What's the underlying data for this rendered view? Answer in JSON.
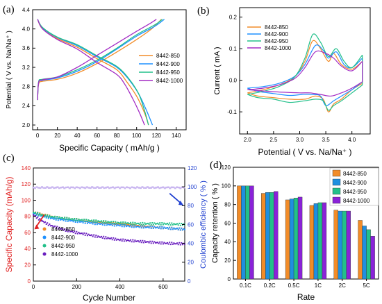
{
  "panels": {
    "a": {
      "letter": "(a)"
    },
    "b": {
      "letter": "(b)"
    },
    "c": {
      "letter": "(c)"
    },
    "d": {
      "letter": "(d)"
    }
  },
  "chart_data": [
    {
      "id": "a",
      "type": "line",
      "xlabel": "Specific Capacity ( mAh/g )",
      "ylabel": "Potential ( V vs. Na/Na⁺ )",
      "xlim": [
        -5,
        150
      ],
      "ylim": [
        1.9,
        4.4
      ],
      "xticks": [
        0,
        20,
        40,
        60,
        80,
        100,
        120,
        140
      ],
      "yticks": [
        2.0,
        2.4,
        2.8,
        3.2,
        3.6,
        4.0,
        4.4
      ],
      "ytick_labels": [
        "2.0",
        "2.4",
        "2.8",
        "3.2",
        "3.6",
        "4.0",
        "4.4"
      ],
      "legend_position": "right",
      "series": [
        {
          "name": "8442-850",
          "color": "#f28c28",
          "charge": [
            [
              0,
              2.52
            ],
            [
              1,
              2.85
            ],
            [
              5,
              2.91
            ],
            [
              20,
              2.95
            ],
            [
              40,
              3.08
            ],
            [
              60,
              3.28
            ],
            [
              80,
              3.52
            ],
            [
              100,
              3.78
            ],
            [
              115,
              4.0
            ],
            [
              125,
              4.2
            ]
          ],
          "discharge": [
            [
              0,
              4.2
            ],
            [
              5,
              4.0
            ],
            [
              20,
              3.8
            ],
            [
              40,
              3.62
            ],
            [
              60,
              3.38
            ],
            [
              80,
              3.15
            ],
            [
              90,
              2.9
            ],
            [
              100,
              2.6
            ],
            [
              108,
              2.25
            ],
            [
              112,
              2.0
            ]
          ]
        },
        {
          "name": "8442-900",
          "color": "#1e90ff",
          "charge": [
            [
              0,
              2.52
            ],
            [
              1,
              2.88
            ],
            [
              5,
              2.93
            ],
            [
              20,
              2.98
            ],
            [
              40,
              3.12
            ],
            [
              60,
              3.32
            ],
            [
              80,
              3.58
            ],
            [
              100,
              3.85
            ],
            [
              118,
              4.05
            ],
            [
              128,
              4.2
            ]
          ],
          "discharge": [
            [
              0,
              4.2
            ],
            [
              5,
              4.02
            ],
            [
              20,
              3.82
            ],
            [
              40,
              3.65
            ],
            [
              60,
              3.42
            ],
            [
              80,
              3.2
            ],
            [
              92,
              2.95
            ],
            [
              102,
              2.65
            ],
            [
              110,
              2.3
            ],
            [
              116,
              2.0
            ]
          ]
        },
        {
          "name": "8442-950",
          "color": "#22c08a",
          "charge": [
            [
              0,
              2.52
            ],
            [
              1,
              2.9
            ],
            [
              5,
              2.95
            ],
            [
              20,
              3.0
            ],
            [
              40,
              3.15
            ],
            [
              60,
              3.35
            ],
            [
              80,
              3.6
            ],
            [
              100,
              3.88
            ],
            [
              118,
              4.08
            ],
            [
              126,
              4.2
            ]
          ],
          "discharge": [
            [
              0,
              4.2
            ],
            [
              5,
              4.03
            ],
            [
              20,
              3.83
            ],
            [
              40,
              3.67
            ],
            [
              60,
              3.44
            ],
            [
              80,
              3.22
            ],
            [
              92,
              2.97
            ],
            [
              102,
              2.65
            ],
            [
              108,
              2.3
            ],
            [
              112,
              2.0
            ]
          ]
        },
        {
          "name": "8442-1000",
          "color": "#a32cc4",
          "charge": [
            [
              0,
              2.52
            ],
            [
              1,
              2.88
            ],
            [
              5,
              2.94
            ],
            [
              20,
              3.0
            ],
            [
              40,
              3.2
            ],
            [
              60,
              3.45
            ],
            [
              80,
              3.7
            ],
            [
              100,
              3.95
            ],
            [
              114,
              4.12
            ],
            [
              120,
              4.2
            ]
          ],
          "discharge": [
            [
              0,
              4.2
            ],
            [
              5,
              4.0
            ],
            [
              20,
              3.78
            ],
            [
              40,
              3.58
            ],
            [
              60,
              3.3
            ],
            [
              80,
              3.05
            ],
            [
              88,
              2.85
            ],
            [
              96,
              2.55
            ],
            [
              103,
              2.25
            ],
            [
              108,
              2.0
            ]
          ]
        }
      ]
    },
    {
      "id": "b",
      "type": "line",
      "xlabel": "Potential ( V vs. Na/Na⁺ )",
      "ylabel": "Current ( mA )",
      "xlim": [
        1.85,
        4.35
      ],
      "ylim": [
        -0.17,
        0.23
      ],
      "xticks": [
        2.0,
        2.5,
        3.0,
        3.5,
        4.0
      ],
      "xtick_labels": [
        "2.0",
        "2.5",
        "3.0",
        "3.5",
        "4.0"
      ],
      "yticks": [
        -0.1,
        0.0,
        0.1,
        0.2
      ],
      "ytick_labels": [
        "-0.1",
        "0.0",
        "0.1",
        "0.2"
      ],
      "legend_position": "top-left",
      "series": [
        {
          "name": "8442-850",
          "color": "#f28c28",
          "upper": [
            [
              2.0,
              -0.04
            ],
            [
              2.3,
              -0.03
            ],
            [
              2.6,
              -0.015
            ],
            [
              2.9,
              0.01
            ],
            [
              3.1,
              0.06
            ],
            [
              3.25,
              0.125
            ],
            [
              3.4,
              0.1
            ],
            [
              3.55,
              0.06
            ],
            [
              3.65,
              0.085
            ],
            [
              3.8,
              0.05
            ],
            [
              4.0,
              0.035
            ],
            [
              4.2,
              0.06
            ]
          ],
          "lower": [
            [
              4.2,
              -0.01
            ],
            [
              4.0,
              -0.03
            ],
            [
              3.8,
              -0.06
            ],
            [
              3.65,
              -0.075
            ],
            [
              3.55,
              -0.1
            ],
            [
              3.45,
              -0.06
            ],
            [
              3.3,
              -0.05
            ],
            [
              3.1,
              -0.06
            ],
            [
              2.8,
              -0.06
            ],
            [
              2.5,
              -0.055
            ],
            [
              2.2,
              -0.05
            ],
            [
              2.0,
              -0.04
            ]
          ]
        },
        {
          "name": "8442-900",
          "color": "#1e90ff",
          "upper": [
            [
              2.0,
              -0.025
            ],
            [
              2.3,
              -0.02
            ],
            [
              2.6,
              -0.01
            ],
            [
              2.9,
              0.012
            ],
            [
              3.1,
              0.05
            ],
            [
              3.3,
              0.11
            ],
            [
              3.45,
              0.095
            ],
            [
              3.55,
              0.07
            ],
            [
              3.7,
              0.09
            ],
            [
              3.85,
              0.05
            ],
            [
              4.0,
              0.04
            ],
            [
              4.2,
              0.07
            ]
          ],
          "lower": [
            [
              4.2,
              -0.005
            ],
            [
              4.0,
              -0.03
            ],
            [
              3.8,
              -0.05
            ],
            [
              3.65,
              -0.065
            ],
            [
              3.5,
              -0.08
            ],
            [
              3.4,
              -0.05
            ],
            [
              3.25,
              -0.045
            ],
            [
              3.05,
              -0.045
            ],
            [
              2.8,
              -0.048
            ],
            [
              2.5,
              -0.042
            ],
            [
              2.2,
              -0.035
            ],
            [
              2.0,
              -0.025
            ]
          ]
        },
        {
          "name": "8442-950",
          "color": "#22c08a",
          "upper": [
            [
              2.0,
              -0.045
            ],
            [
              2.3,
              -0.035
            ],
            [
              2.6,
              -0.02
            ],
            [
              2.9,
              0.01
            ],
            [
              3.1,
              0.07
            ],
            [
              3.25,
              0.145
            ],
            [
              3.4,
              0.12
            ],
            [
              3.55,
              0.075
            ],
            [
              3.7,
              0.1
            ],
            [
              3.85,
              0.06
            ],
            [
              4.0,
              0.04
            ],
            [
              4.2,
              0.08
            ]
          ],
          "lower": [
            [
              4.2,
              -0.015
            ],
            [
              4.0,
              -0.04
            ],
            [
              3.8,
              -0.065
            ],
            [
              3.65,
              -0.08
            ],
            [
              3.55,
              -0.095
            ],
            [
              3.45,
              -0.065
            ],
            [
              3.3,
              -0.06
            ],
            [
              3.1,
              -0.065
            ],
            [
              2.8,
              -0.07
            ],
            [
              2.5,
              -0.06
            ],
            [
              2.2,
              -0.055
            ],
            [
              2.0,
              -0.045
            ]
          ]
        },
        {
          "name": "8442-1000",
          "color": "#a32cc4",
          "upper": [
            [
              2.0,
              -0.03
            ],
            [
              2.3,
              -0.025
            ],
            [
              2.6,
              -0.015
            ],
            [
              2.9,
              0.005
            ],
            [
              3.1,
              0.04
            ],
            [
              3.3,
              0.09
            ],
            [
              3.5,
              0.085
            ],
            [
              3.65,
              0.07
            ],
            [
              3.8,
              0.045
            ],
            [
              4.0,
              0.03
            ],
            [
              4.2,
              0.06
            ]
          ],
          "lower": [
            [
              4.2,
              -0.005
            ],
            [
              4.0,
              -0.025
            ],
            [
              3.8,
              -0.04
            ],
            [
              3.6,
              -0.05
            ],
            [
              3.4,
              -0.045
            ],
            [
              3.2,
              -0.04
            ],
            [
              3.0,
              -0.04
            ],
            [
              2.7,
              -0.038
            ],
            [
              2.4,
              -0.035
            ],
            [
              2.0,
              -0.03
            ]
          ]
        }
      ]
    },
    {
      "id": "c",
      "type": "scatter",
      "xlabel": "Cycle Number",
      "ylabel": "Specific Capacity (mAh/g)",
      "y2label": "Coulombic efficiency ( % )",
      "xlim": [
        0,
        700
      ],
      "ylim": [
        0,
        140
      ],
      "y2lim": [
        0,
        120
      ],
      "xticks": [
        0,
        200,
        400,
        600
      ],
      "yticks": [
        0,
        20,
        40,
        60,
        80,
        100,
        120,
        140
      ],
      "y2ticks": [
        0,
        20,
        40,
        60,
        80,
        100,
        120
      ],
      "legend_position": "lower-left",
      "series": [
        {
          "name": "8442-850",
          "color": "#f28c28",
          "capacity": [
            [
              0,
              85
            ],
            [
              50,
              82
            ],
            [
              100,
              79
            ],
            [
              200,
              76
            ],
            [
              300,
              73
            ],
            [
              400,
              71
            ],
            [
              500,
              68
            ],
            [
              600,
              66
            ],
            [
              700,
              64
            ]
          ],
          "efficiency": 99.5
        },
        {
          "name": "8442-900",
          "color": "#1e90ff",
          "capacity": [
            [
              0,
              84
            ],
            [
              50,
              80
            ],
            [
              100,
              77
            ],
            [
              200,
              74
            ],
            [
              300,
              71
            ],
            [
              400,
              69
            ],
            [
              500,
              67
            ],
            [
              600,
              66
            ],
            [
              700,
              64
            ]
          ],
          "efficiency": 99.3
        },
        {
          "name": "8442-950",
          "color": "#22c08a",
          "capacity": [
            [
              0,
              85
            ],
            [
              50,
              81
            ],
            [
              100,
              79
            ],
            [
              200,
              76
            ],
            [
              300,
              74
            ],
            [
              400,
              72
            ],
            [
              500,
              71
            ],
            [
              600,
              71
            ],
            [
              700,
              70
            ]
          ],
          "efficiency": 99.4
        },
        {
          "name": "8442-1000",
          "color": "#6a1fbf",
          "capacity": [
            [
              0,
              82
            ],
            [
              30,
              76
            ],
            [
              70,
              70
            ],
            [
              100,
              67
            ],
            [
              150,
              63
            ],
            [
              200,
              60
            ],
            [
              300,
              55
            ],
            [
              400,
              51
            ],
            [
              500,
              49
            ],
            [
              600,
              47
            ],
            [
              700,
              46
            ]
          ],
          "efficiency": 98.8
        }
      ]
    },
    {
      "id": "d",
      "type": "bar",
      "xlabel": "Rate",
      "ylabel": "Capacity retention ( % )",
      "categories": [
        "0.1C",
        "0.2C",
        "0.5C",
        "1C",
        "2C",
        "5C"
      ],
      "ylim": [
        0,
        120
      ],
      "yticks": [
        0,
        20,
        40,
        60,
        80,
        100,
        120
      ],
      "legend_position": "top-right",
      "series": [
        {
          "name": "8442-850",
          "color": "#f28c28",
          "values": [
            100,
            92,
            85,
            79,
            74,
            63
          ]
        },
        {
          "name": "8442-900",
          "color": "#1f8fe0",
          "values": [
            100,
            93,
            86,
            81,
            73,
            57
          ]
        },
        {
          "name": "8442-950",
          "color": "#22c08a",
          "values": [
            100,
            93,
            87,
            82,
            73,
            53
          ]
        },
        {
          "name": "8442-1000",
          "color": "#8a22d8",
          "values": [
            100,
            94,
            88,
            82,
            73,
            46
          ]
        }
      ]
    }
  ]
}
